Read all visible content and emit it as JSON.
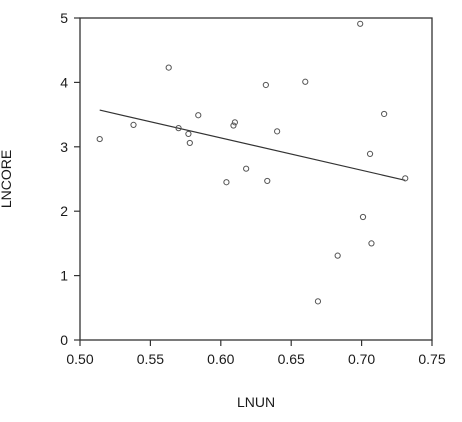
{
  "chart_data": {
    "type": "scatter",
    "title": "",
    "xlabel": "LNUN",
    "ylabel": "LNCORE",
    "xlim": [
      0.5,
      0.75
    ],
    "ylim": [
      0,
      5
    ],
    "x_ticks": [
      "0.50",
      "0.55",
      "0.60",
      "0.65",
      "0.70",
      "0.75"
    ],
    "y_ticks": [
      "0",
      "1",
      "2",
      "3",
      "4",
      "5"
    ],
    "grid": false,
    "legend": "none",
    "series": [
      {
        "points": [
          {
            "x": 0.514,
            "y": 3.12
          },
          {
            "x": 0.538,
            "y": 3.34
          },
          {
            "x": 0.563,
            "y": 4.23
          },
          {
            "x": 0.57,
            "y": 3.29
          },
          {
            "x": 0.577,
            "y": 3.2
          },
          {
            "x": 0.578,
            "y": 3.06
          },
          {
            "x": 0.584,
            "y": 3.49
          },
          {
            "x": 0.604,
            "y": 2.45
          },
          {
            "x": 0.609,
            "y": 3.33
          },
          {
            "x": 0.61,
            "y": 3.38
          },
          {
            "x": 0.618,
            "y": 2.66
          },
          {
            "x": 0.632,
            "y": 3.96
          },
          {
            "x": 0.633,
            "y": 2.47
          },
          {
            "x": 0.64,
            "y": 3.24
          },
          {
            "x": 0.66,
            "y": 4.01
          },
          {
            "x": 0.669,
            "y": 0.6
          },
          {
            "x": 0.683,
            "y": 1.31
          },
          {
            "x": 0.699,
            "y": 4.91
          },
          {
            "x": 0.701,
            "y": 1.91
          },
          {
            "x": 0.706,
            "y": 2.89
          },
          {
            "x": 0.707,
            "y": 1.5
          },
          {
            "x": 0.716,
            "y": 3.51
          },
          {
            "x": 0.731,
            "y": 2.51
          }
        ]
      }
    ],
    "fit_line": {
      "x": [
        0.514,
        0.731
      ],
      "y": [
        3.57,
        2.48
      ]
    },
    "colors": {
      "marker": "#555555",
      "line": "#333333",
      "frame": "#333333",
      "text": "#1a1a1a"
    }
  }
}
